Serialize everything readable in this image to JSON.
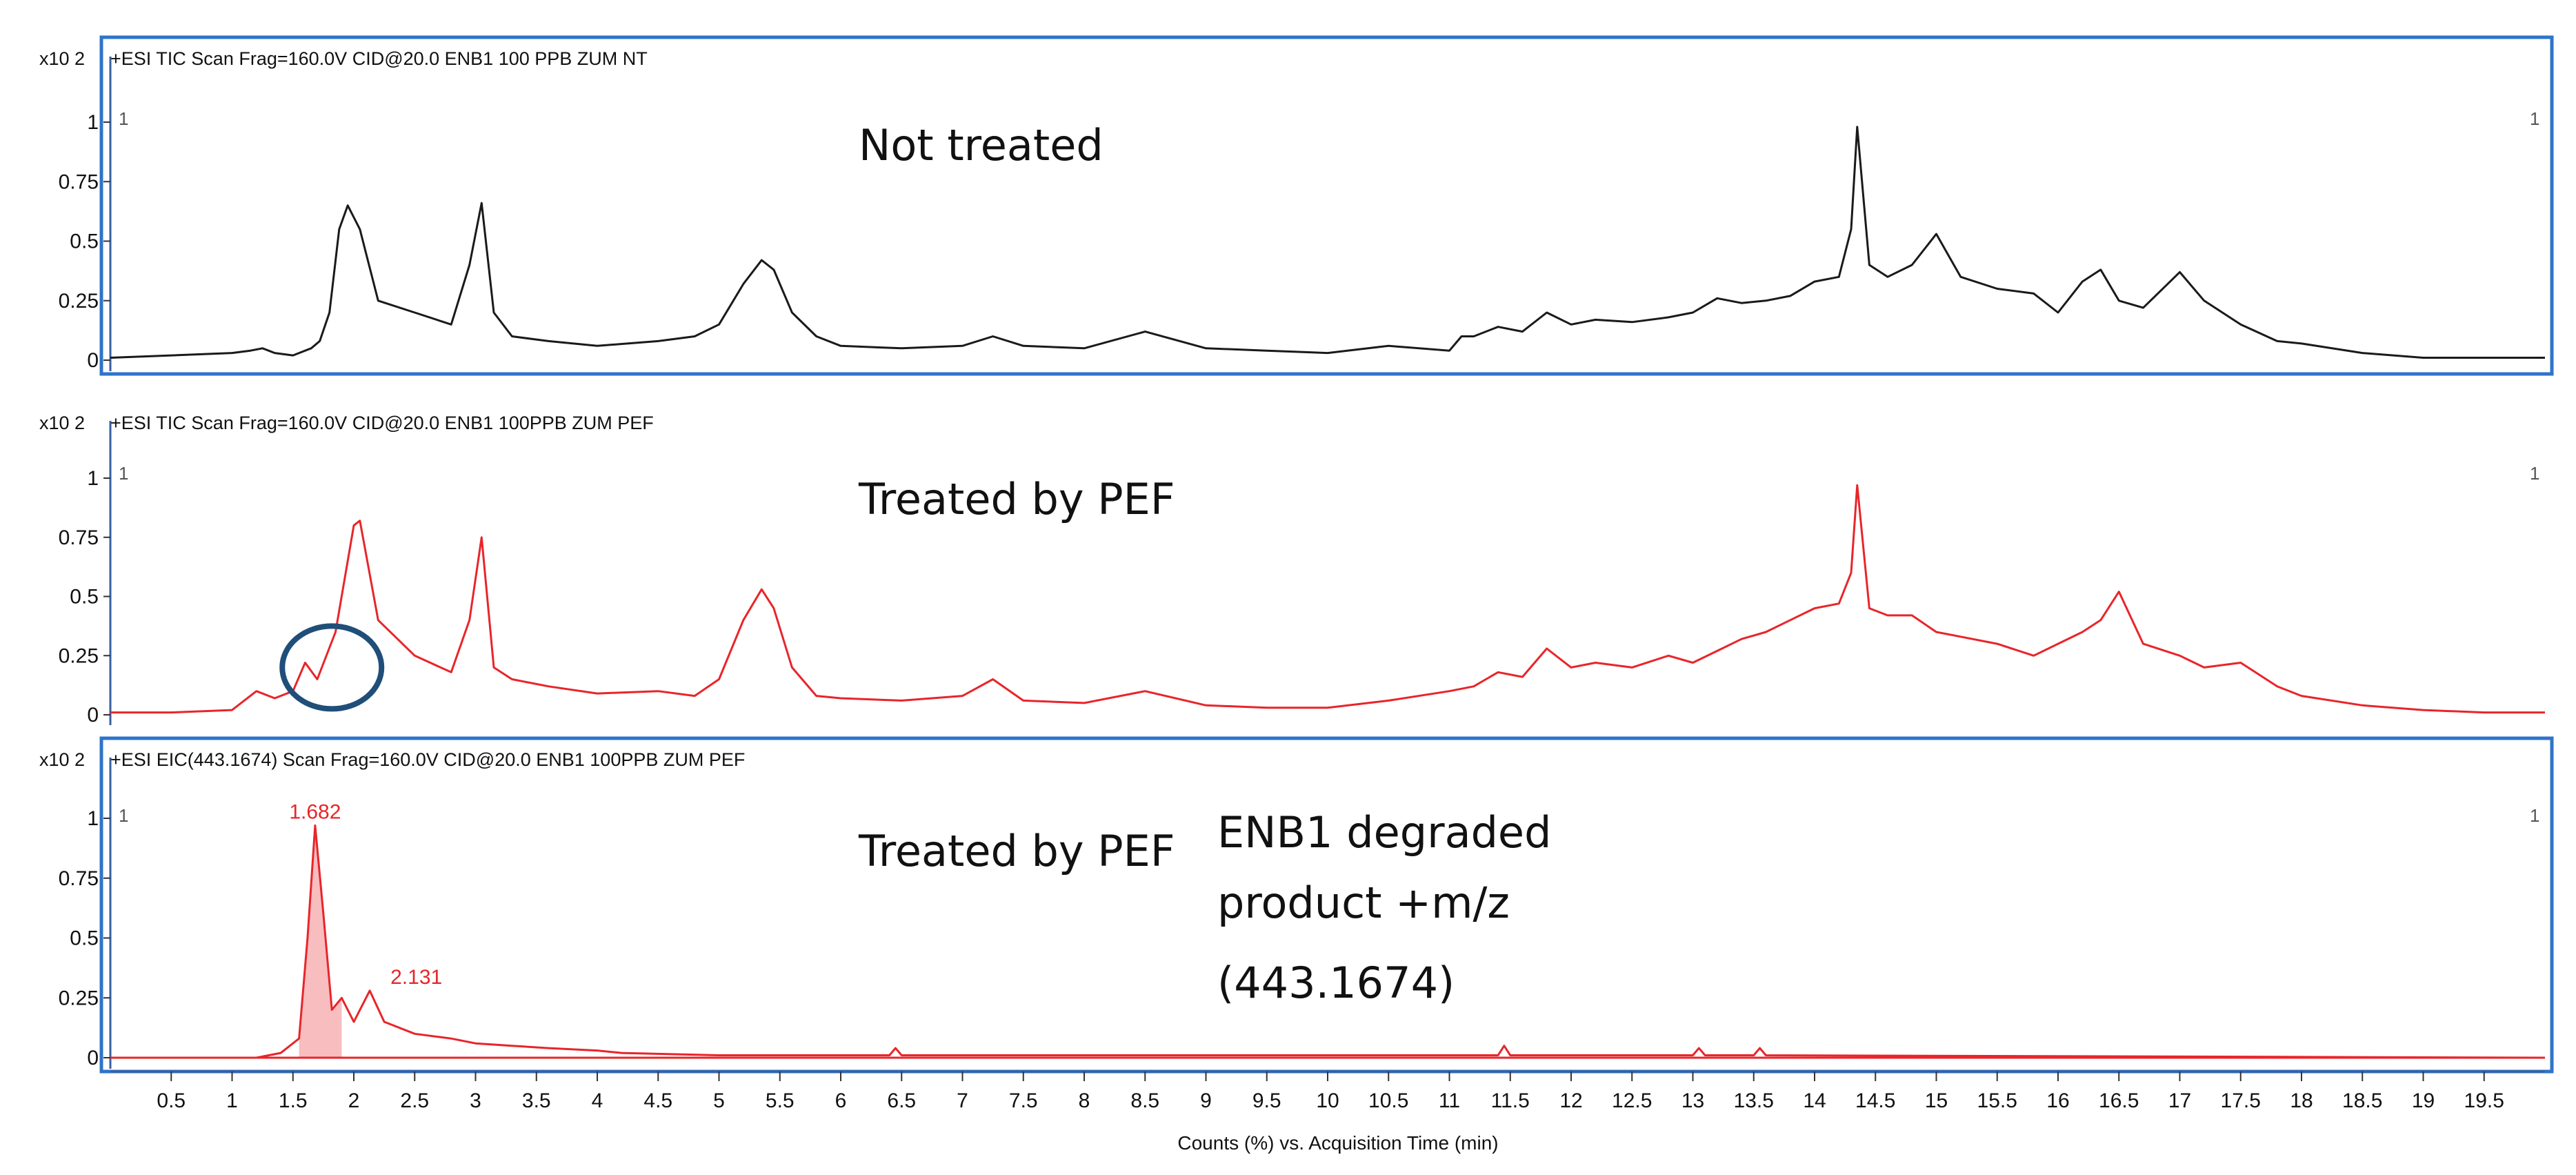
{
  "chart_data": [
    {
      "type": "line",
      "panel_title": "+ESI TIC Scan Frag=160.0V CID@20.0 ENB1 100 PPB ZUM NT",
      "y_scale_label": "x10 2",
      "annotation": "Not treated",
      "corner_left": "1",
      "corner_right": "1",
      "color": "#1a1a1a",
      "xlim": [
        0,
        20
      ],
      "ylim": [
        0,
        1
      ],
      "y_ticks": [
        "0",
        "0.25",
        "0.5",
        "0.75",
        "1"
      ],
      "x": [
        0.0,
        0.5,
        1.0,
        1.15,
        1.25,
        1.35,
        1.5,
        1.65,
        1.72,
        1.8,
        1.88,
        1.95,
        2.05,
        2.2,
        2.5,
        2.8,
        2.95,
        3.05,
        3.15,
        3.3,
        3.6,
        4.0,
        4.5,
        4.8,
        5.0,
        5.2,
        5.35,
        5.45,
        5.6,
        5.8,
        6.0,
        6.5,
        7.0,
        7.25,
        7.5,
        8.0,
        8.5,
        9.0,
        9.5,
        10.0,
        10.5,
        11.0,
        11.1,
        11.2,
        11.4,
        11.6,
        11.8,
        12.0,
        12.2,
        12.5,
        12.8,
        13.0,
        13.2,
        13.4,
        13.6,
        13.8,
        14.0,
        14.2,
        14.3,
        14.35,
        14.45,
        14.6,
        14.8,
        15.0,
        15.2,
        15.5,
        15.8,
        16.0,
        16.2,
        16.35,
        16.5,
        16.7,
        17.0,
        17.2,
        17.5,
        17.8,
        18.0,
        18.5,
        19.0,
        19.5,
        20.0
      ],
      "y": [
        0.01,
        0.02,
        0.03,
        0.04,
        0.05,
        0.03,
        0.02,
        0.05,
        0.08,
        0.2,
        0.55,
        0.65,
        0.55,
        0.25,
        0.2,
        0.15,
        0.4,
        0.66,
        0.2,
        0.1,
        0.08,
        0.06,
        0.08,
        0.1,
        0.15,
        0.32,
        0.42,
        0.38,
        0.2,
        0.1,
        0.06,
        0.05,
        0.06,
        0.1,
        0.06,
        0.05,
        0.12,
        0.05,
        0.04,
        0.03,
        0.06,
        0.04,
        0.1,
        0.1,
        0.14,
        0.12,
        0.2,
        0.15,
        0.17,
        0.16,
        0.18,
        0.2,
        0.26,
        0.24,
        0.25,
        0.27,
        0.33,
        0.35,
        0.55,
        0.98,
        0.4,
        0.35,
        0.4,
        0.53,
        0.35,
        0.3,
        0.28,
        0.2,
        0.33,
        0.38,
        0.25,
        0.22,
        0.37,
        0.25,
        0.15,
        0.08,
        0.07,
        0.03,
        0.01,
        0.01,
        0.01
      ]
    },
    {
      "type": "line",
      "panel_title": "+ESI TIC Scan Frag=160.0V CID@20.0 ENB1 100PPB ZUM PEF",
      "y_scale_label": "x10 2",
      "annotation": "Treated by PEF",
      "corner_left": "1",
      "corner_right": "1",
      "color": "#e8252a",
      "highlight_color": "#1f4e79",
      "xlim": [
        0,
        20
      ],
      "ylim": [
        0,
        1
      ],
      "y_ticks": [
        "0",
        "0.25",
        "0.5",
        "0.75",
        "1"
      ],
      "x": [
        0.0,
        0.5,
        1.0,
        1.2,
        1.35,
        1.5,
        1.6,
        1.7,
        1.85,
        2.0,
        2.05,
        2.2,
        2.5,
        2.8,
        2.95,
        3.05,
        3.15,
        3.3,
        3.6,
        4.0,
        4.5,
        4.8,
        5.0,
        5.2,
        5.35,
        5.45,
        5.6,
        5.8,
        6.0,
        6.5,
        7.0,
        7.25,
        7.5,
        8.0,
        8.5,
        9.0,
        9.5,
        10.0,
        10.5,
        11.0,
        11.2,
        11.4,
        11.6,
        11.8,
        12.0,
        12.2,
        12.5,
        12.8,
        13.0,
        13.2,
        13.4,
        13.6,
        13.8,
        14.0,
        14.2,
        14.3,
        14.35,
        14.45,
        14.6,
        14.8,
        15.0,
        15.2,
        15.5,
        15.8,
        16.0,
        16.2,
        16.35,
        16.5,
        16.7,
        17.0,
        17.2,
        17.5,
        17.8,
        18.0,
        18.5,
        19.0,
        19.5,
        20.0
      ],
      "y": [
        0.01,
        0.01,
        0.02,
        0.1,
        0.07,
        0.1,
        0.22,
        0.15,
        0.35,
        0.8,
        0.82,
        0.4,
        0.25,
        0.18,
        0.4,
        0.75,
        0.2,
        0.15,
        0.12,
        0.09,
        0.1,
        0.08,
        0.15,
        0.4,
        0.53,
        0.45,
        0.2,
        0.08,
        0.07,
        0.06,
        0.08,
        0.15,
        0.06,
        0.05,
        0.1,
        0.04,
        0.03,
        0.03,
        0.06,
        0.1,
        0.12,
        0.18,
        0.16,
        0.28,
        0.2,
        0.22,
        0.2,
        0.25,
        0.22,
        0.27,
        0.32,
        0.35,
        0.4,
        0.45,
        0.47,
        0.6,
        0.97,
        0.45,
        0.42,
        0.42,
        0.35,
        0.33,
        0.3,
        0.25,
        0.3,
        0.35,
        0.4,
        0.52,
        0.3,
        0.25,
        0.2,
        0.22,
        0.12,
        0.08,
        0.04,
        0.02,
        0.01,
        0.01
      ]
    },
    {
      "type": "area",
      "panel_title": "+ESI EIC(443.1674) Scan Frag=160.0V CID@20.0 ENB1 100PPB ZUM PEF",
      "y_scale_label": "x10 2",
      "annotation": "Treated by PEF",
      "annotation_2_lines": [
        "ENB1 degraded",
        "product +m/z",
        "(443.1674)"
      ],
      "corner_left": "1",
      "corner_right": "1",
      "color": "#e8252a",
      "peak_labels": [
        "1.682",
        "2.131"
      ],
      "peak_label_x": [
        1.682,
        2.131
      ],
      "peak_label_y": [
        0.97,
        0.28
      ],
      "xlim": [
        0,
        20
      ],
      "ylim": [
        0,
        1
      ],
      "y_ticks": [
        "0",
        "0.25",
        "0.5",
        "0.75",
        "1"
      ],
      "x": [
        0.0,
        1.2,
        1.4,
        1.55,
        1.62,
        1.682,
        1.75,
        1.82,
        1.9,
        2.0,
        2.131,
        2.25,
        2.5,
        2.8,
        3.0,
        3.3,
        3.6,
        4.0,
        4.2,
        5.0,
        6.4,
        6.45,
        6.5,
        11.4,
        11.45,
        11.5,
        13.0,
        13.05,
        13.1,
        13.5,
        13.55,
        13.6,
        20.0
      ],
      "y": [
        0.0,
        0.0,
        0.02,
        0.08,
        0.5,
        0.97,
        0.6,
        0.2,
        0.25,
        0.15,
        0.28,
        0.15,
        0.1,
        0.08,
        0.06,
        0.05,
        0.04,
        0.03,
        0.02,
        0.01,
        0.01,
        0.04,
        0.01,
        0.01,
        0.05,
        0.01,
        0.01,
        0.04,
        0.01,
        0.01,
        0.04,
        0.01,
        0.0
      ]
    }
  ],
  "x_axis": {
    "tick_labels": [
      "0.5",
      "1",
      "1.5",
      "2",
      "2.5",
      "3",
      "3.5",
      "4",
      "4.5",
      "5",
      "5.5",
      "6",
      "6.5",
      "7",
      "7.5",
      "8",
      "8.5",
      "9",
      "9.5",
      "10",
      "10.5",
      "11",
      "11.5",
      "12",
      "12.5",
      "13",
      "13.5",
      "14",
      "14.5",
      "15",
      "15.5",
      "16",
      "16.5",
      "17",
      "17.5",
      "18",
      "18.5",
      "19",
      "19.5"
    ],
    "title": "Counts (%) vs. Acquisition Time (min)"
  }
}
